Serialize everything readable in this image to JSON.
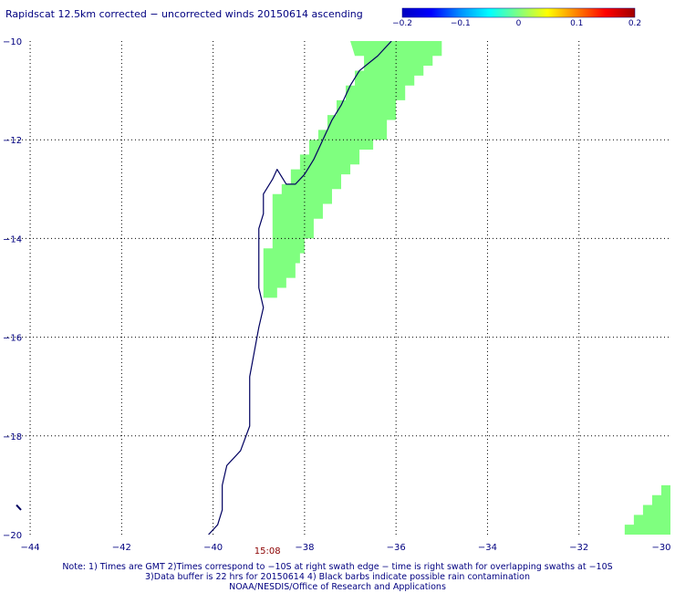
{
  "title": "Rapidscat 12.5km corrected − uncorrected winds 20150614 ascending",
  "colorbar": {
    "ticks": [
      "−0.2",
      "−0.1",
      "0",
      "0.1",
      "0.2"
    ],
    "stops": [
      "#0000c0",
      "#0000ff",
      "#0090ff",
      "#00ffff",
      "#80ff80",
      "#ffff00",
      "#ff8000",
      "#ff0000",
      "#a00000"
    ]
  },
  "map": {
    "lon_range": [
      -44.5,
      -30
    ],
    "lat_range": [
      -20,
      -10
    ],
    "lon_ticks": [
      {
        "value": -44,
        "label": "−44"
      },
      {
        "value": -42,
        "label": "−42"
      },
      {
        "value": -40,
        "label": "−40"
      },
      {
        "value": -38,
        "label": "−38"
      },
      {
        "value": -36,
        "label": "−36"
      },
      {
        "value": -34,
        "label": "−34"
      },
      {
        "value": -32,
        "label": "−32"
      },
      {
        "value": -30,
        "label": "−30"
      }
    ],
    "lat_ticks": [
      {
        "value": -10,
        "label": "−10"
      },
      {
        "value": -12,
        "label": "−12"
      },
      {
        "value": -14,
        "label": "−14"
      },
      {
        "value": -16,
        "label": "−16"
      },
      {
        "value": -18,
        "label": "−18"
      },
      {
        "value": -20,
        "label": "−20"
      }
    ],
    "swath_color": "#7fff7f",
    "coast_color": "#000060",
    "swath_time": {
      "label": "15:08",
      "lon": -38.8,
      "lat": -20.3
    },
    "swath_main": [
      [
        -37.0,
        -10.0
      ],
      [
        -35.0,
        -10.0
      ],
      [
        -35.0,
        -10.3
      ],
      [
        -35.2,
        -10.3
      ],
      [
        -35.2,
        -10.5
      ],
      [
        -35.4,
        -10.5
      ],
      [
        -35.4,
        -10.7
      ],
      [
        -35.6,
        -10.7
      ],
      [
        -35.6,
        -10.9
      ],
      [
        -35.8,
        -10.9
      ],
      [
        -35.8,
        -11.2
      ],
      [
        -36.0,
        -11.2
      ],
      [
        -36.0,
        -11.6
      ],
      [
        -36.2,
        -11.6
      ],
      [
        -36.2,
        -12.0
      ],
      [
        -36.5,
        -12.0
      ],
      [
        -36.5,
        -12.2
      ],
      [
        -36.8,
        -12.2
      ],
      [
        -36.8,
        -12.5
      ],
      [
        -37.0,
        -12.5
      ],
      [
        -37.0,
        -12.7
      ],
      [
        -37.2,
        -12.7
      ],
      [
        -37.2,
        -13.0
      ],
      [
        -37.4,
        -13.0
      ],
      [
        -37.4,
        -13.3
      ],
      [
        -37.6,
        -13.3
      ],
      [
        -37.6,
        -13.6
      ],
      [
        -37.8,
        -13.6
      ],
      [
        -37.8,
        -14.0
      ],
      [
        -38.0,
        -14.0
      ],
      [
        -38.0,
        -14.3
      ],
      [
        -38.1,
        -14.3
      ],
      [
        -38.1,
        -14.5
      ],
      [
        -38.2,
        -14.5
      ],
      [
        -38.2,
        -14.8
      ],
      [
        -38.4,
        -14.8
      ],
      [
        -38.4,
        -15.0
      ],
      [
        -38.6,
        -15.0
      ],
      [
        -38.6,
        -15.2
      ],
      [
        -38.9,
        -15.2
      ],
      [
        -38.9,
        -14.2
      ],
      [
        -38.7,
        -14.2
      ],
      [
        -38.7,
        -13.1
      ],
      [
        -38.5,
        -13.1
      ],
      [
        -38.5,
        -12.9
      ],
      [
        -38.3,
        -12.9
      ],
      [
        -38.3,
        -12.6
      ],
      [
        -38.1,
        -12.6
      ],
      [
        -38.1,
        -12.3
      ],
      [
        -37.9,
        -12.3
      ],
      [
        -37.9,
        -12.0
      ],
      [
        -37.7,
        -12.0
      ],
      [
        -37.7,
        -11.8
      ],
      [
        -37.5,
        -11.8
      ],
      [
        -37.5,
        -11.5
      ],
      [
        -37.3,
        -11.5
      ],
      [
        -37.3,
        -11.2
      ],
      [
        -37.1,
        -11.2
      ],
      [
        -37.1,
        -10.9
      ],
      [
        -36.9,
        -10.9
      ],
      [
        -36.9,
        -10.6
      ],
      [
        -36.7,
        -10.6
      ],
      [
        -36.7,
        -10.3
      ],
      [
        -36.9,
        -10.3
      ]
    ],
    "swath_corner": [
      [
        -30.0,
        -19.2
      ],
      [
        -30.0,
        -20.0
      ],
      [
        -31.0,
        -20.0
      ],
      [
        -31.0,
        -19.8
      ],
      [
        -30.8,
        -19.8
      ],
      [
        -30.8,
        -19.6
      ],
      [
        -30.6,
        -19.6
      ],
      [
        -30.6,
        -19.4
      ],
      [
        -30.4,
        -19.4
      ],
      [
        -30.4,
        -19.2
      ],
      [
        -30.2,
        -19.2
      ],
      [
        -30.2,
        -19.0
      ],
      [
        -30.0,
        -19.0
      ]
    ],
    "coastline": [
      [
        -36.1,
        -10.0
      ],
      [
        -36.4,
        -10.3
      ],
      [
        -36.8,
        -10.6
      ],
      [
        -37.0,
        -10.9
      ],
      [
        -37.2,
        -11.3
      ],
      [
        -37.4,
        -11.6
      ],
      [
        -37.6,
        -12.0
      ],
      [
        -37.8,
        -12.4
      ],
      [
        -38.0,
        -12.7
      ],
      [
        -38.2,
        -12.9
      ],
      [
        -38.4,
        -12.9
      ],
      [
        -38.6,
        -12.6
      ],
      [
        -38.7,
        -12.8
      ],
      [
        -38.9,
        -13.1
      ],
      [
        -38.9,
        -13.5
      ],
      [
        -39.0,
        -13.8
      ],
      [
        -39.0,
        -14.2
      ],
      [
        -39.0,
        -14.6
      ],
      [
        -39.0,
        -15.0
      ],
      [
        -38.9,
        -15.4
      ],
      [
        -39.0,
        -15.8
      ],
      [
        -39.1,
        -16.3
      ],
      [
        -39.2,
        -16.8
      ],
      [
        -39.2,
        -17.3
      ],
      [
        -39.2,
        -17.8
      ],
      [
        -39.4,
        -18.3
      ],
      [
        -39.7,
        -18.6
      ],
      [
        -39.8,
        -19.0
      ],
      [
        -39.8,
        -19.5
      ],
      [
        -39.9,
        -19.8
      ],
      [
        -40.1,
        -20.0
      ]
    ],
    "island": [
      [
        -44.3,
        -19.4
      ],
      [
        -44.2,
        -19.5
      ]
    ]
  },
  "footer": [
    "Note: 1) Times are GMT 2)Times correspond to −10S at right swath edge − time is right swath for overlapping swaths at −10S",
    "3)Data buffer is 22 hrs for 20150614 4) Black barbs indicate possible rain contamination",
    "NOAA/NESDIS/Office of Research and Applications"
  ]
}
